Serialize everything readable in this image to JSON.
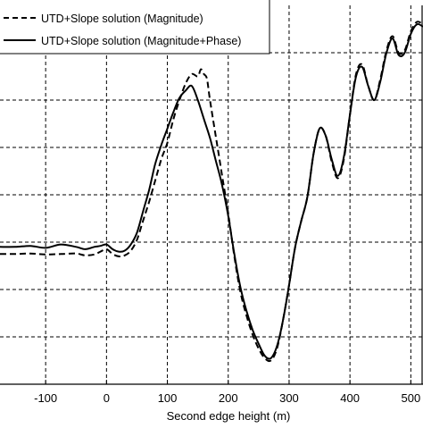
{
  "chart_data": {
    "type": "line",
    "xlabel": "Second edge height (m)",
    "ylabel": "",
    "title": "",
    "xlim": [
      -175,
      520
    ],
    "ylim": [
      0,
      8
    ],
    "x_ticks": [
      -100,
      0,
      100,
      200,
      300,
      400,
      500
    ],
    "x_tick_labels": [
      "-100",
      "0",
      "100",
      "200",
      "300",
      "400",
      "500"
    ],
    "y_gridlines": [
      1,
      2,
      3,
      4,
      5,
      6,
      7
    ],
    "grid": true,
    "legend_position": "top-left",
    "series": [
      {
        "name": "UTD+Slope solution (Magnitude)",
        "style": "dashed",
        "color": "#000000",
        "x": [
          -175,
          -150,
          -125,
          -100,
          -75,
          -50,
          -35,
          -20,
          -10,
          0,
          10,
          20,
          30,
          40,
          50,
          60,
          70,
          80,
          90,
          100,
          110,
          120,
          130,
          140,
          150,
          155,
          160,
          165,
          170,
          180,
          190,
          200,
          210,
          220,
          230,
          240,
          250,
          260,
          270,
          280,
          290,
          300,
          310,
          320,
          330,
          340,
          350,
          360,
          370,
          380,
          390,
          400,
          410,
          420,
          430,
          440,
          450,
          460,
          470,
          480,
          490,
          500,
          510,
          520
        ],
        "y": [
          2.75,
          2.75,
          2.76,
          2.74,
          2.75,
          2.76,
          2.72,
          2.74,
          2.8,
          2.85,
          2.75,
          2.7,
          2.72,
          2.82,
          3.05,
          3.45,
          3.85,
          4.3,
          4.75,
          5.1,
          5.6,
          6.0,
          6.35,
          6.55,
          6.5,
          6.65,
          6.55,
          6.45,
          6.0,
          5.2,
          4.4,
          3.6,
          2.7,
          1.95,
          1.45,
          1.05,
          0.75,
          0.55,
          0.5,
          0.75,
          1.35,
          2.1,
          2.9,
          3.45,
          3.95,
          4.85,
          5.4,
          5.25,
          4.7,
          4.35,
          4.75,
          5.7,
          6.55,
          6.75,
          6.3,
          6.0,
          6.45,
          7.05,
          7.35,
          7.0,
          7.05,
          7.45,
          7.65,
          7.6
        ]
      },
      {
        "name": "UTD+Slope solution (Magnitude+Phase)",
        "style": "solid",
        "color": "#000000",
        "x": [
          -175,
          -150,
          -125,
          -100,
          -75,
          -50,
          -35,
          -20,
          -10,
          0,
          10,
          20,
          30,
          40,
          50,
          60,
          70,
          80,
          90,
          100,
          110,
          120,
          130,
          140,
          150,
          160,
          170,
          180,
          190,
          200,
          210,
          220,
          230,
          240,
          250,
          260,
          270,
          280,
          290,
          300,
          310,
          320,
          330,
          340,
          350,
          360,
          370,
          380,
          390,
          400,
          410,
          420,
          430,
          440,
          450,
          460,
          470,
          480,
          490,
          500,
          510,
          520
        ],
        "y": [
          2.9,
          2.9,
          2.92,
          2.88,
          2.95,
          2.9,
          2.85,
          2.9,
          2.92,
          2.95,
          2.85,
          2.8,
          2.82,
          2.95,
          3.2,
          3.65,
          4.1,
          4.65,
          5.05,
          5.4,
          5.75,
          6.05,
          6.2,
          6.3,
          6.0,
          5.6,
          5.2,
          4.7,
          4.2,
          3.55,
          2.75,
          2.05,
          1.55,
          1.15,
          0.85,
          0.6,
          0.55,
          0.8,
          1.35,
          2.1,
          2.9,
          3.45,
          3.95,
          4.85,
          5.4,
          5.25,
          4.75,
          4.4,
          4.8,
          5.7,
          6.5,
          6.7,
          6.3,
          6.0,
          6.4,
          7.0,
          7.3,
          6.95,
          7.0,
          7.4,
          7.6,
          7.55
        ]
      }
    ]
  }
}
